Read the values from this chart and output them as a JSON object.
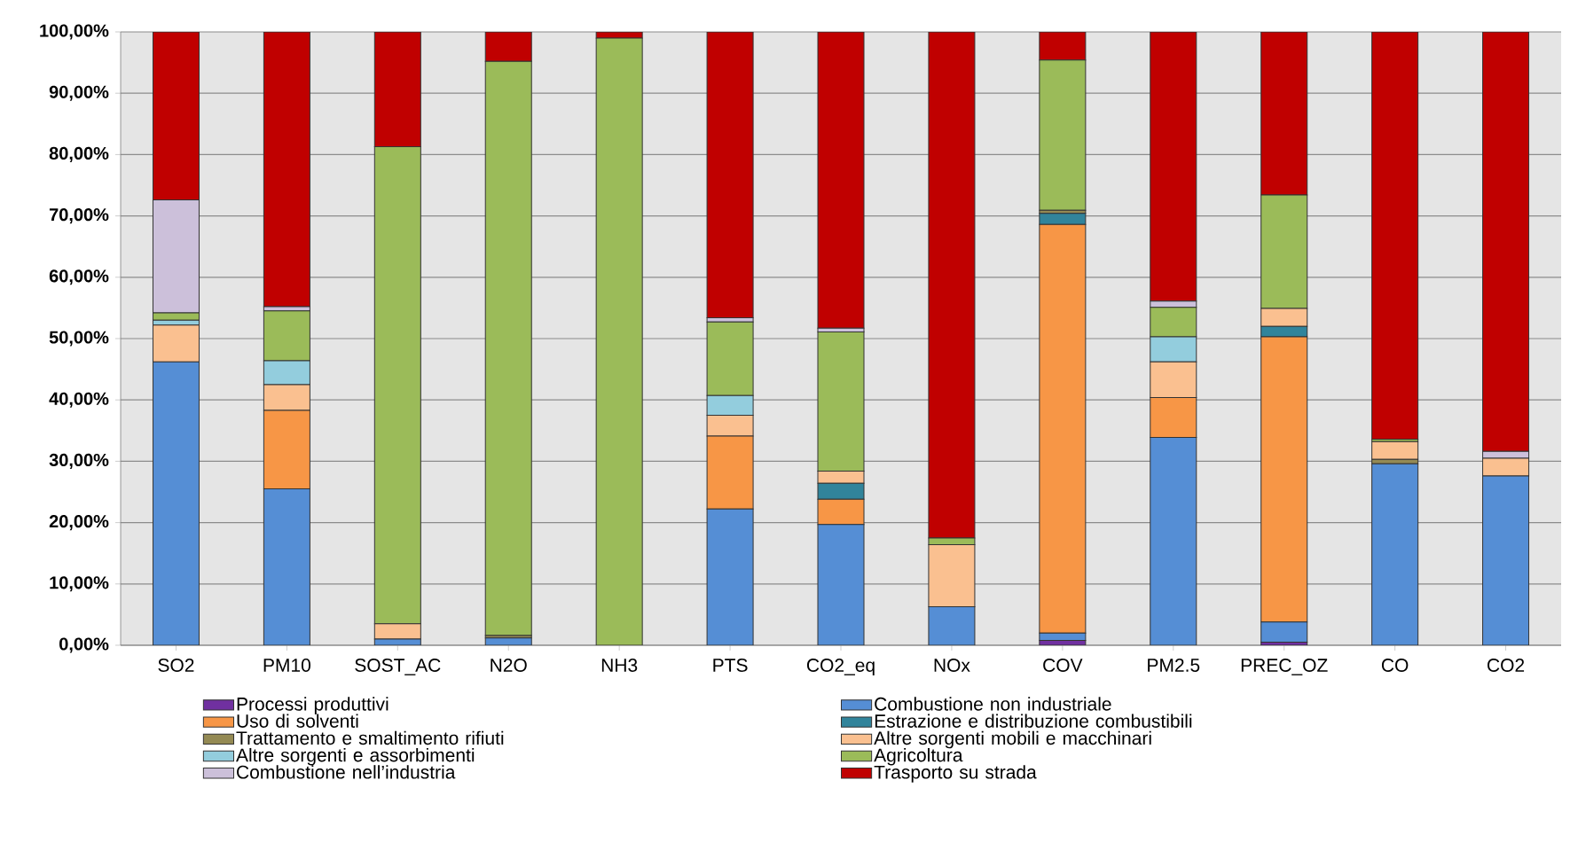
{
  "chart_data": {
    "type": "bar",
    "stacked": true,
    "grid": "y",
    "legend": "bottom",
    "categories": [
      "SO2",
      "PM10",
      "SOST_AC",
      "N2O",
      "NH3",
      "PTS",
      "CO2_eq",
      "NOx",
      "COV",
      "PM2.5",
      "PREC_OZ",
      "CO",
      "CO2"
    ],
    "ylim": [
      0,
      100
    ],
    "yticks": [
      {
        "value": 0,
        "label": "0,00%"
      },
      {
        "value": 10,
        "label": "10,00%"
      },
      {
        "value": 20,
        "label": "20,00%"
      },
      {
        "value": 30,
        "label": "30,00%"
      },
      {
        "value": 40,
        "label": "40,00%"
      },
      {
        "value": 50,
        "label": "50,00%"
      },
      {
        "value": 60,
        "label": "60,00%"
      },
      {
        "value": 70,
        "label": "70,00%"
      },
      {
        "value": 80,
        "label": "80,00%"
      },
      {
        "value": 90,
        "label": "90,00%"
      },
      {
        "value": 100,
        "label": "100,00%"
      }
    ],
    "series": [
      {
        "name": "Processi produttivi",
        "color": "#7030a0",
        "values": [
          0,
          0,
          0,
          0,
          0,
          0,
          0,
          0,
          0.8,
          0,
          0.5,
          0,
          0
        ]
      },
      {
        "name": "Combustione non industriale",
        "color": "#558ed5",
        "values": [
          46.2,
          25.5,
          1.0,
          1.2,
          0,
          22.2,
          19.7,
          6.3,
          1.2,
          33.9,
          3.3,
          29.6,
          27.6
        ]
      },
      {
        "name": "Uso di solventi",
        "color": "#f79646",
        "values": [
          0,
          12.8,
          0,
          0,
          0,
          11.9,
          4.1,
          0,
          66.6,
          6.5,
          46.5,
          0,
          0
        ]
      },
      {
        "name": "Estrazione e distribuzione combustibili",
        "color": "#31849b",
        "values": [
          0,
          0,
          0,
          0,
          0,
          0,
          2.6,
          0,
          1.8,
          0,
          1.7,
          0,
          0
        ]
      },
      {
        "name": "Trattamento e smaltimento rifiuti",
        "color": "#948a54",
        "values": [
          0,
          0,
          0,
          0.4,
          0,
          0,
          0,
          0,
          0.5,
          0,
          0,
          0.7,
          0
        ]
      },
      {
        "name": "Altre sorgenti mobili e macchinari",
        "color": "#fac090",
        "values": [
          6.0,
          4.2,
          2.5,
          0,
          0,
          3.4,
          2.0,
          10.1,
          0,
          5.8,
          2.9,
          2.9,
          2.9
        ]
      },
      {
        "name": "Altre sorgenti e assorbimenti",
        "color": "#93cddd",
        "values": [
          0.8,
          3.9,
          0,
          0,
          0,
          3.2,
          0,
          0,
          0,
          4.1,
          0,
          0,
          0
        ]
      },
      {
        "name": "Agricoltura",
        "color": "#9bbb59",
        "values": [
          1.2,
          8.1,
          77.8,
          93.6,
          99.0,
          12.0,
          22.7,
          1.1,
          24.5,
          4.8,
          18.5,
          0.4,
          0
        ]
      },
      {
        "name": "Combustione nell’industria",
        "color": "#ccc0da",
        "values": [
          18.4,
          0.7,
          0,
          0,
          0,
          0.7,
          0.6,
          0,
          0,
          1.0,
          0,
          0,
          1.1
        ]
      },
      {
        "name": "Trasporto su strada",
        "color": "#c00000",
        "values": [
          27.4,
          44.8,
          18.7,
          4.8,
          1.0,
          46.6,
          48.3,
          82.5,
          4.6,
          43.9,
          26.6,
          66.4,
          68.4
        ]
      }
    ]
  }
}
